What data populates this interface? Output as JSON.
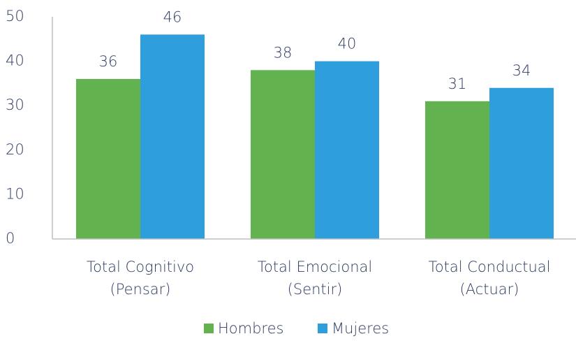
{
  "chart_data": {
    "type": "bar",
    "categories": [
      [
        "Total Cognitivo",
        "(Pensar)"
      ],
      [
        "Total Emocional",
        "(Sentir)"
      ],
      [
        "Total Conductual",
        "(Actuar)"
      ]
    ],
    "series": [
      {
        "name": "Hombres",
        "color": "#62b34f",
        "values": [
          36,
          38,
          31
        ]
      },
      {
        "name": "Mujeres",
        "color": "#2e9fdc",
        "values": [
          46,
          40,
          34
        ]
      }
    ],
    "ylim": [
      0,
      50
    ],
    "yticks": [
      0,
      10,
      20,
      30,
      40,
      50
    ],
    "grid": false,
    "legend": "bottom"
  }
}
